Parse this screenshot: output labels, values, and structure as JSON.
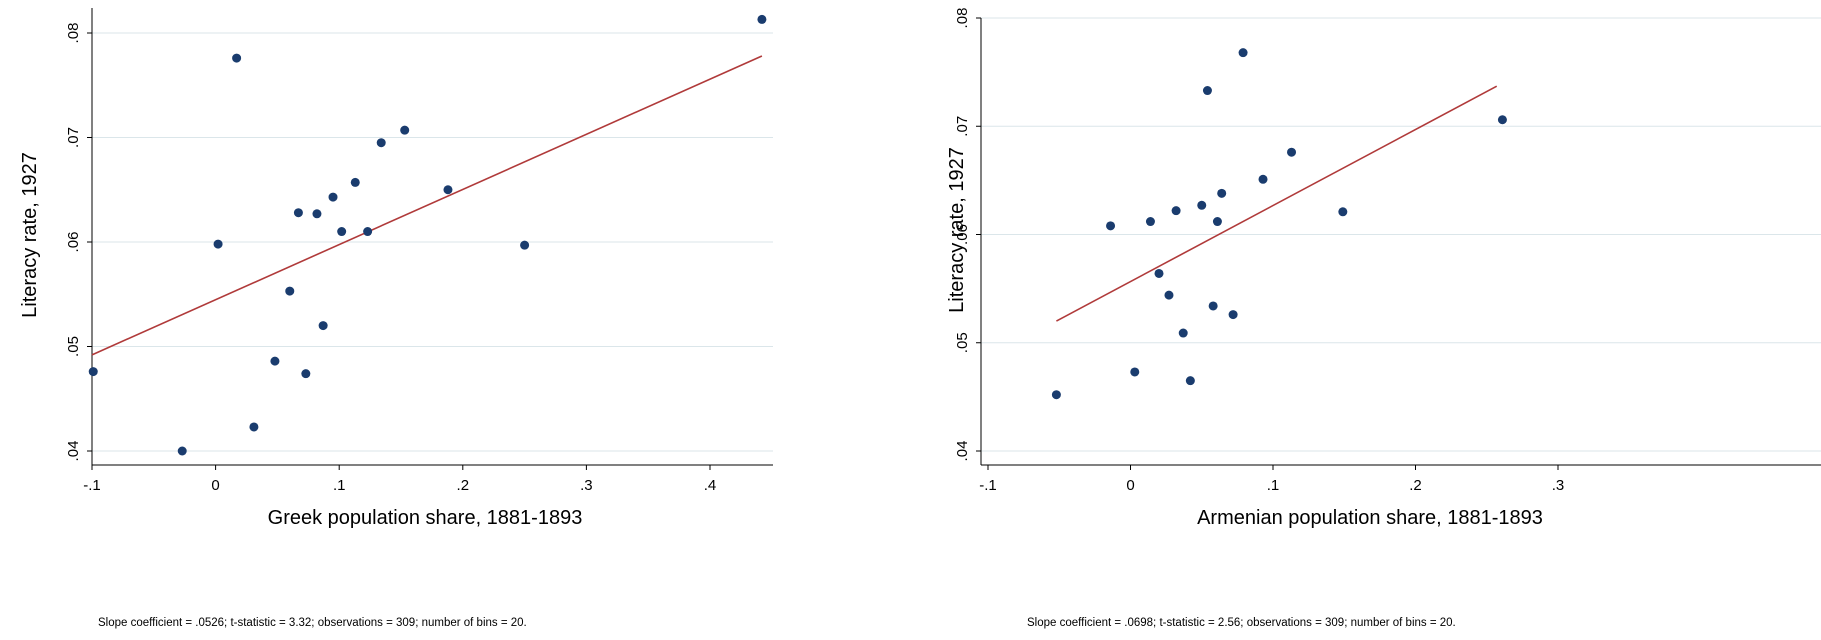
{
  "chart_data": [
    {
      "type": "scatter",
      "xlabel": "Greek population share, 1881-1893",
      "ylabel": "Literacy rate, 1927",
      "xlim": [
        -0.1,
        0.45
      ],
      "ylim": [
        0.04,
        0.082
      ],
      "xticks": [
        -0.1,
        0,
        0.1,
        0.2,
        0.3,
        0.4
      ],
      "xtick_labels": [
        "-.1",
        "0",
        ".1",
        ".2",
        ".3",
        ".4"
      ],
      "yticks": [
        0.04,
        0.05,
        0.06,
        0.07,
        0.08
      ],
      "ytick_labels": [
        ".04",
        ".05",
        ".06",
        ".07",
        ".08"
      ],
      "grid": true,
      "points": [
        {
          "x": -0.099,
          "y": 0.0476
        },
        {
          "x": -0.027,
          "y": 0.04
        },
        {
          "x": 0.002,
          "y": 0.0598
        },
        {
          "x": 0.017,
          "y": 0.0776
        },
        {
          "x": 0.031,
          "y": 0.0423
        },
        {
          "x": 0.048,
          "y": 0.0486
        },
        {
          "x": 0.06,
          "y": 0.0553
        },
        {
          "x": 0.067,
          "y": 0.0628
        },
        {
          "x": 0.073,
          "y": 0.0474
        },
        {
          "x": 0.082,
          "y": 0.0627
        },
        {
          "x": 0.087,
          "y": 0.052
        },
        {
          "x": 0.095,
          "y": 0.0643
        },
        {
          "x": 0.102,
          "y": 0.061
        },
        {
          "x": 0.113,
          "y": 0.0657
        },
        {
          "x": 0.123,
          "y": 0.061
        },
        {
          "x": 0.134,
          "y": 0.0695
        },
        {
          "x": 0.153,
          "y": 0.0707
        },
        {
          "x": 0.188,
          "y": 0.065
        },
        {
          "x": 0.25,
          "y": 0.0597
        },
        {
          "x": 0.442,
          "y": 0.0813
        }
      ],
      "fit_line": {
        "x": [
          -0.1,
          0.442
        ],
        "y": [
          0.0492,
          0.0778
        ],
        "color": "#b03a3a"
      },
      "marker_color": "#1a3c6e",
      "note": "Slope coefficient = .0526; t-statistic = 3.32; observations = 309; number of bins  = 20."
    },
    {
      "type": "scatter",
      "xlabel": "Armenian population share, 1881-1893",
      "ylabel": "Literacy rate, 1927",
      "xlim": [
        -0.1,
        0.3
      ],
      "ylim": [
        0.04,
        0.08
      ],
      "xticks": [
        -0.1,
        0,
        0.1,
        0.2,
        0.3
      ],
      "xtick_labels": [
        "-.1",
        "0",
        ".1",
        ".2",
        ".3"
      ],
      "yticks": [
        0.04,
        0.05,
        0.06,
        0.07,
        0.08
      ],
      "ytick_labels": [
        ".04",
        ".05",
        ".06",
        ".07",
        ".08"
      ],
      "grid": true,
      "points": [
        {
          "x": -0.052,
          "y": 0.0452
        },
        {
          "x": -0.014,
          "y": 0.0608
        },
        {
          "x": 0.003,
          "y": 0.0473
        },
        {
          "x": 0.014,
          "y": 0.0612
        },
        {
          "x": 0.02,
          "y": 0.0564
        },
        {
          "x": 0.027,
          "y": 0.0544
        },
        {
          "x": 0.032,
          "y": 0.0622
        },
        {
          "x": 0.037,
          "y": 0.0509
        },
        {
          "x": 0.042,
          "y": 0.0465
        },
        {
          "x": 0.05,
          "y": 0.0627
        },
        {
          "x": 0.054,
          "y": 0.0733
        },
        {
          "x": 0.058,
          "y": 0.0534
        },
        {
          "x": 0.061,
          "y": 0.0612
        },
        {
          "x": 0.064,
          "y": 0.0638
        },
        {
          "x": 0.072,
          "y": 0.0526
        },
        {
          "x": 0.079,
          "y": 0.0768
        },
        {
          "x": 0.093,
          "y": 0.0651
        },
        {
          "x": 0.113,
          "y": 0.0676
        },
        {
          "x": 0.149,
          "y": 0.0621
        },
        {
          "x": 0.261,
          "y": 0.0706
        }
      ],
      "fit_line": {
        "x": [
          -0.052,
          0.257
        ],
        "y": [
          0.052,
          0.0737
        ],
        "color": "#b03a3a"
      },
      "marker_color": "#1a3c6e",
      "note": "Slope coefficient = .0698; t-statistic = 2.56; observations = 309; number of bins = 20."
    }
  ]
}
